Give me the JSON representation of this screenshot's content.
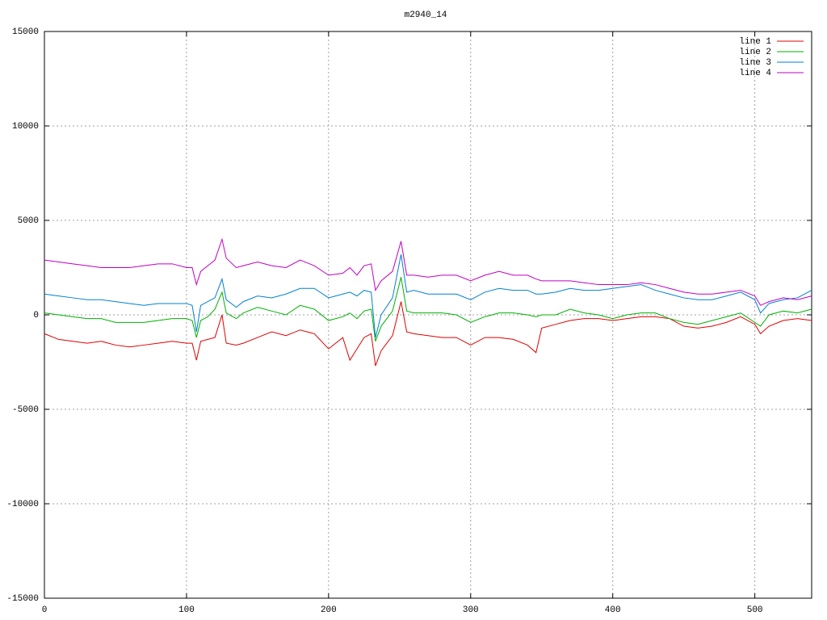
{
  "chart_data": {
    "type": "line",
    "title": "m2940_14",
    "x": [
      0,
      10,
      20,
      30,
      40,
      50,
      60,
      70,
      80,
      90,
      100,
      104,
      107,
      110,
      115,
      120,
      125,
      128,
      135,
      140,
      150,
      160,
      170,
      180,
      190,
      200,
      210,
      215,
      220,
      225,
      230,
      233,
      237,
      245,
      251,
      255,
      260,
      270,
      280,
      290,
      300,
      310,
      320,
      330,
      340,
      346,
      350,
      360,
      370,
      380,
      390,
      400,
      410,
      420,
      430,
      440,
      450,
      460,
      470,
      480,
      490,
      500,
      504,
      510,
      520,
      530,
      540
    ],
    "series": [
      {
        "name": "line 1",
        "color": "#e00000",
        "values": [
          -1000,
          -1300,
          -1400,
          -1500,
          -1400,
          -1600,
          -1700,
          -1600,
          -1500,
          -1400,
          -1500,
          -1500,
          -2400,
          -1400,
          -1300,
          -1200,
          0,
          -1500,
          -1600,
          -1500,
          -1200,
          -900,
          -1100,
          -800,
          -1000,
          -1800,
          -1200,
          -2400,
          -1800,
          -1200,
          -1000,
          -2700,
          -1900,
          -1100,
          700,
          -900,
          -1000,
          -1100,
          -1200,
          -1200,
          -1600,
          -1200,
          -1200,
          -1300,
          -1600,
          -2000,
          -700,
          -500,
          -300,
          -200,
          -200,
          -300,
          -200,
          -100,
          -100,
          -200,
          -600,
          -700,
          -600,
          -400,
          -100,
          -500,
          -1000,
          -600,
          -300,
          -200,
          -300
        ]
      },
      {
        "name": "line 2",
        "color": "#00b000",
        "values": [
          100,
          0,
          -100,
          -200,
          -200,
          -400,
          -400,
          -400,
          -300,
          -200,
          -200,
          -300,
          -1200,
          -300,
          -100,
          300,
          1200,
          100,
          -200,
          100,
          400,
          200,
          0,
          500,
          300,
          -300,
          -100,
          100,
          -200,
          200,
          300,
          -1400,
          -600,
          200,
          2000,
          200,
          100,
          100,
          100,
          0,
          -400,
          -100,
          100,
          100,
          0,
          -100,
          0,
          0,
          300,
          100,
          0,
          -200,
          0,
          100,
          100,
          -200,
          -400,
          -500,
          -300,
          -100,
          100,
          -400,
          -600,
          0,
          200,
          100,
          300
        ]
      },
      {
        "name": "line 3",
        "color": "#0080d0",
        "values": [
          1100,
          1000,
          900,
          800,
          800,
          700,
          600,
          500,
          600,
          600,
          600,
          500,
          -900,
          500,
          700,
          900,
          1900,
          800,
          400,
          700,
          1000,
          900,
          1100,
          1400,
          1400,
          900,
          1100,
          1200,
          1000,
          1300,
          1200,
          -1200,
          0,
          900,
          3200,
          1200,
          1300,
          1100,
          1100,
          1100,
          800,
          1200,
          1400,
          1300,
          1300,
          1100,
          1100,
          1200,
          1400,
          1300,
          1300,
          1400,
          1500,
          1600,
          1300,
          1100,
          900,
          800,
          800,
          1000,
          1200,
          800,
          100,
          600,
          800,
          900,
          1300
        ]
      },
      {
        "name": "line 4",
        "color": "#c000c0",
        "values": [
          2900,
          2800,
          2700,
          2600,
          2500,
          2500,
          2500,
          2600,
          2700,
          2700,
          2500,
          2500,
          1600,
          2300,
          2600,
          2900,
          4000,
          3000,
          2500,
          2600,
          2800,
          2600,
          2500,
          2900,
          2600,
          2100,
          2200,
          2500,
          2100,
          2600,
          2700,
          1300,
          1800,
          2300,
          3900,
          2100,
          2100,
          2000,
          2100,
          2100,
          1800,
          2100,
          2300,
          2100,
          2100,
          1900,
          1800,
          1800,
          1800,
          1700,
          1600,
          1600,
          1600,
          1700,
          1600,
          1400,
          1200,
          1100,
          1100,
          1200,
          1300,
          1000,
          500,
          700,
          900,
          800,
          1000
        ]
      }
    ],
    "xlim": [
      0,
      540
    ],
    "xticks": [
      0,
      100,
      200,
      300,
      400,
      500
    ],
    "ylim": [
      -15000,
      15000
    ],
    "yticks": [
      -15000,
      -10000,
      -5000,
      0,
      5000,
      10000,
      15000
    ],
    "grid": true,
    "legend": "top-right"
  }
}
